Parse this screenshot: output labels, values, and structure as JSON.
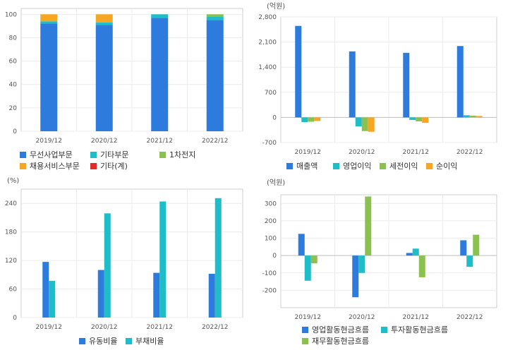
{
  "chart_data": [
    {
      "type": "bar",
      "stacked": true,
      "categories": [
        "2019/12",
        "2020/12",
        "2021/12",
        "2022/12"
      ],
      "ylim": [
        0,
        105
      ],
      "yticks": [
        0,
        20,
        40,
        60,
        80,
        100
      ],
      "unit": "",
      "series": [
        {
          "name": "무선사업부문",
          "color": "#2d7bdc",
          "values": [
            92,
            91,
            97,
            95
          ]
        },
        {
          "name": "기타부문",
          "color": "#1fbdc8",
          "values": [
            2,
            2,
            3,
            3
          ]
        },
        {
          "name": "1차전지",
          "color": "#8cc152",
          "values": [
            0,
            0,
            0,
            2
          ]
        },
        {
          "name": "채용서비스부문",
          "color": "#f5a623",
          "values": [
            6,
            7,
            0,
            0
          ]
        },
        {
          "name": "기타(계)",
          "color": "#e02b2b",
          "values": [
            0,
            0,
            0,
            0
          ]
        }
      ]
    },
    {
      "type": "bar",
      "categories": [
        "2019/12",
        "2020/12",
        "2021/12",
        "2022/12"
      ],
      "ylim": [
        -700,
        2800
      ],
      "yticks": [
        -700,
        0,
        700,
        1400,
        2100,
        2800
      ],
      "ytick_labels": [
        "-700",
        "0",
        "700",
        "1,400",
        "2,100",
        "2,800"
      ],
      "unit": "(억원)",
      "series": [
        {
          "name": "매출액",
          "color": "#2d7bdc",
          "values": [
            2550,
            1840,
            1800,
            1990
          ]
        },
        {
          "name": "영업이익",
          "color": "#1fbdc8",
          "values": [
            -130,
            -250,
            -70,
            60
          ]
        },
        {
          "name": "세전이익",
          "color": "#8cc152",
          "values": [
            -120,
            -380,
            -110,
            50
          ]
        },
        {
          "name": "순이익",
          "color": "#f5a623",
          "values": [
            -100,
            -400,
            -150,
            40
          ]
        }
      ]
    },
    {
      "type": "bar",
      "categories": [
        "2019/12",
        "2020/12",
        "2021/12",
        "2022/12"
      ],
      "ylim": [
        0,
        270
      ],
      "yticks": [
        0,
        60,
        120,
        180,
        240
      ],
      "unit": "(%)",
      "series": [
        {
          "name": "유동비율",
          "color": "#2d7bdc",
          "values": [
            117,
            100,
            94,
            92
          ]
        },
        {
          "name": "부채비율",
          "color": "#1fbdc8",
          "values": [
            77,
            219,
            244,
            251
          ]
        }
      ]
    },
    {
      "type": "bar",
      "categories": [
        "2019/12",
        "2020/12",
        "2021/12",
        "2022/12"
      ],
      "ylim": [
        -300,
        350
      ],
      "yticks": [
        -200,
        -100,
        0,
        100,
        200,
        300
      ],
      "unit": "(억원)",
      "series": [
        {
          "name": "영업활동현금흐름",
          "color": "#2d7bdc",
          "values": [
            125,
            -240,
            15,
            88
          ]
        },
        {
          "name": "투자활동현금흐름",
          "color": "#1fbdc8",
          "values": [
            -145,
            -100,
            40,
            -65
          ]
        },
        {
          "name": "재무활동현금흐름",
          "color": "#8cc152",
          "values": [
            -45,
            340,
            -125,
            120
          ]
        }
      ]
    }
  ]
}
